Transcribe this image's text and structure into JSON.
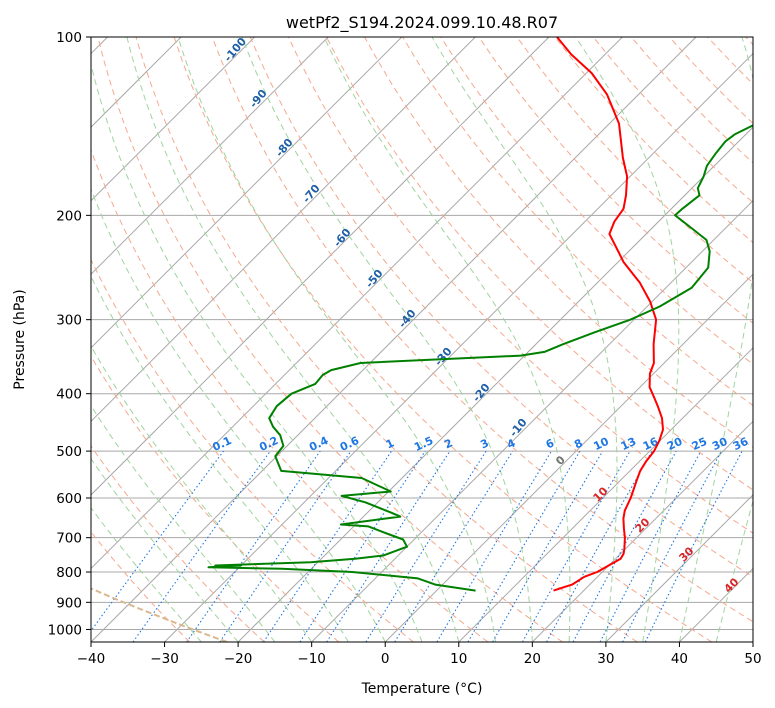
{
  "chart_data": {
    "type": "line",
    "title": "wetPf2_S194.2024.099.10.48.R07",
    "xlabel": "Temperature (°C)",
    "ylabel": "Pressure (hPa)",
    "xlim": [
      -40,
      50
    ],
    "ylim": [
      1050,
      100
    ],
    "y_scale": "log",
    "grid": true,
    "x_ticks": [
      -40,
      -30,
      -20,
      -10,
      0,
      10,
      20,
      30,
      40,
      50
    ],
    "y_ticks": [
      100,
      200,
      300,
      400,
      500,
      600,
      700,
      800,
      900,
      1000
    ],
    "series": [
      {
        "color": "#ff0000",
        "points": [
          [
            15.9,
            860
          ],
          [
            17.6,
            840
          ],
          [
            18.2,
            815
          ],
          [
            19.3,
            800
          ],
          [
            20.7,
            760
          ],
          [
            20.4,
            745
          ],
          [
            19.8,
            730
          ],
          [
            18.4,
            700
          ],
          [
            17.0,
            675
          ],
          [
            15.6,
            650
          ],
          [
            14.7,
            630
          ],
          [
            13.8,
            600
          ],
          [
            12.2,
            560
          ],
          [
            11.4,
            540
          ],
          [
            10.9,
            520
          ],
          [
            10.6,
            500
          ],
          [
            9.9,
            480
          ],
          [
            8.9,
            460
          ],
          [
            7.2,
            440
          ],
          [
            5.0,
            420
          ],
          [
            3.2,
            405
          ],
          [
            1.3,
            390
          ],
          [
            -0.5,
            370
          ],
          [
            -1.4,
            355
          ],
          [
            -4.0,
            330
          ],
          [
            -7.0,
            300
          ],
          [
            -10.2,
            280
          ],
          [
            -14.2,
            260
          ],
          [
            -19.2,
            240
          ],
          [
            -22.6,
            225
          ],
          [
            -25.0,
            215
          ],
          [
            -26.0,
            205
          ],
          [
            -26.5,
            195
          ],
          [
            -28.0,
            185
          ],
          [
            -30.4,
            172
          ],
          [
            -33.5,
            160
          ],
          [
            -38.7,
            140
          ],
          [
            -44.3,
            125
          ],
          [
            -49.3,
            115
          ],
          [
            -54.6,
            107
          ],
          [
            -58.9,
            100
          ]
        ]
      },
      {
        "color": "#008000",
        "points": [
          [
            5.3,
            860
          ],
          [
            -1.0,
            840
          ],
          [
            -4.2,
            820
          ],
          [
            -14.0,
            800
          ],
          [
            -24.0,
            790
          ],
          [
            -34.2,
            785
          ],
          [
            -30.0,
            780
          ],
          [
            -33.5,
            780
          ],
          [
            -21.0,
            770
          ],
          [
            -15.4,
            760
          ],
          [
            -12.0,
            750
          ],
          [
            -10.0,
            725
          ],
          [
            -11.5,
            705
          ],
          [
            -14.3,
            690
          ],
          [
            -18.0,
            670
          ],
          [
            -22.0,
            665
          ],
          [
            -15.0,
            645
          ],
          [
            -16.8,
            635
          ],
          [
            -21.7,
            610
          ],
          [
            -25.8,
            595
          ],
          [
            -19.7,
            585
          ],
          [
            -25.5,
            555
          ],
          [
            -37.4,
            540
          ],
          [
            -40.2,
            510
          ],
          [
            -40.5,
            490
          ],
          [
            -42.4,
            470
          ],
          [
            -44.5,
            455
          ],
          [
            -46.2,
            440
          ],
          [
            -46.8,
            420
          ],
          [
            -46.5,
            400
          ],
          [
            -44.6,
            385
          ],
          [
            -44.8,
            372
          ],
          [
            -44.3,
            365
          ],
          [
            -41.3,
            355
          ],
          [
            -20.5,
            345
          ],
          [
            -17.8,
            340
          ],
          [
            -16.3,
            330
          ],
          [
            -13.6,
            315
          ],
          [
            -10.5,
            300
          ],
          [
            -8.3,
            285
          ],
          [
            -6.5,
            265
          ],
          [
            -7.0,
            245
          ],
          [
            -9.0,
            230
          ],
          [
            -11.0,
            220
          ],
          [
            -14.7,
            210
          ],
          [
            -18.6,
            200
          ],
          [
            -18.5,
            195
          ],
          [
            -18.0,
            185
          ],
          [
            -19.2,
            180
          ],
          [
            -20.0,
            172
          ],
          [
            -21.0,
            165
          ],
          [
            -21.5,
            157
          ],
          [
            -21.8,
            150
          ],
          [
            -21.5,
            146
          ],
          [
            -20.0,
            140
          ],
          [
            -18.6,
            135
          ],
          [
            -18.0,
            130
          ],
          [
            -18.0,
            120
          ],
          [
            -18.5,
            110
          ],
          [
            -19.8,
            100
          ]
        ]
      }
    ],
    "mixing_ratio_labels": [
      "0.1",
      "0.2",
      "0.4",
      "0.6",
      "1",
      "1.5",
      "2",
      "3",
      "4",
      "6",
      "8",
      "10",
      "13",
      "16",
      "20",
      "25",
      "30",
      "36"
    ],
    "dry_adiabat_labels": [
      "-100",
      "-90",
      "-80",
      "-70",
      "-60",
      "-50",
      "-40",
      "-30",
      "-20",
      "-10"
    ],
    "moist_adiabat_labels": [
      "0",
      "10",
      "20",
      "30",
      "40"
    ]
  },
  "colors": {
    "temperature": "#ff0000",
    "dewpoint": "#008000",
    "isotherm": "#a8a8a8",
    "dry_adiabat": "#f5a88e",
    "moist_adiabat": "#9fd49f",
    "mixing_ratio": "#1f77e4",
    "dry_adiabat_label": "#1f5fa8",
    "moist_adiabat_label": "#d62728",
    "lcl_curve": "#d9b88f"
  }
}
